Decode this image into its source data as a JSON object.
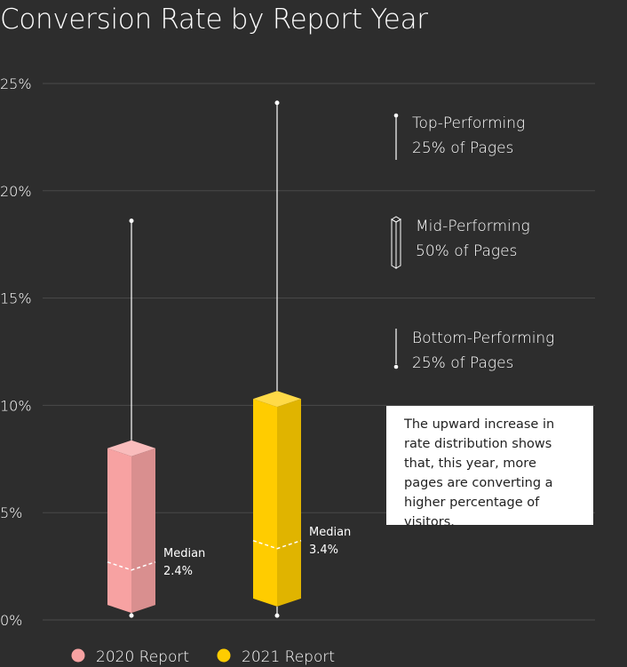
{
  "chart_data": {
    "type": "boxplot",
    "title": "Conversion Rate by Report Year",
    "y_ticks": [
      "0%",
      "5%",
      "10%",
      "15%",
      "20%",
      "25%"
    ],
    "ylim": [
      0,
      25
    ],
    "grid": true,
    "series": [
      {
        "name": "2020 Report",
        "color": "#f7a2a2",
        "min": 0.2,
        "q1": 0.7,
        "median": 2.4,
        "q3": 8.0,
        "max": 18.6,
        "median_label": "Median",
        "median_value": "2.4%"
      },
      {
        "name": "2021 Report",
        "color": "#ffcc00",
        "min": 0.2,
        "q1": 1.0,
        "median": 3.4,
        "q3": 10.3,
        "max": 24.1,
        "median_label": "Median",
        "median_value": "3.4%"
      }
    ],
    "legend": {
      "placement": "bottom",
      "entries": [
        "2020 Report",
        "2021 Report"
      ]
    },
    "key": {
      "top": [
        "Top-Performing",
        "25% of Pages"
      ],
      "mid": [
        "Mid-Performing",
        "50% of Pages"
      ],
      "bottom": [
        "Bottom-Performing",
        "25% of Pages"
      ]
    },
    "annotation": "The upward increase in rate distribution shows that, this year, more pages are converting a higher percentage of visitors."
  }
}
